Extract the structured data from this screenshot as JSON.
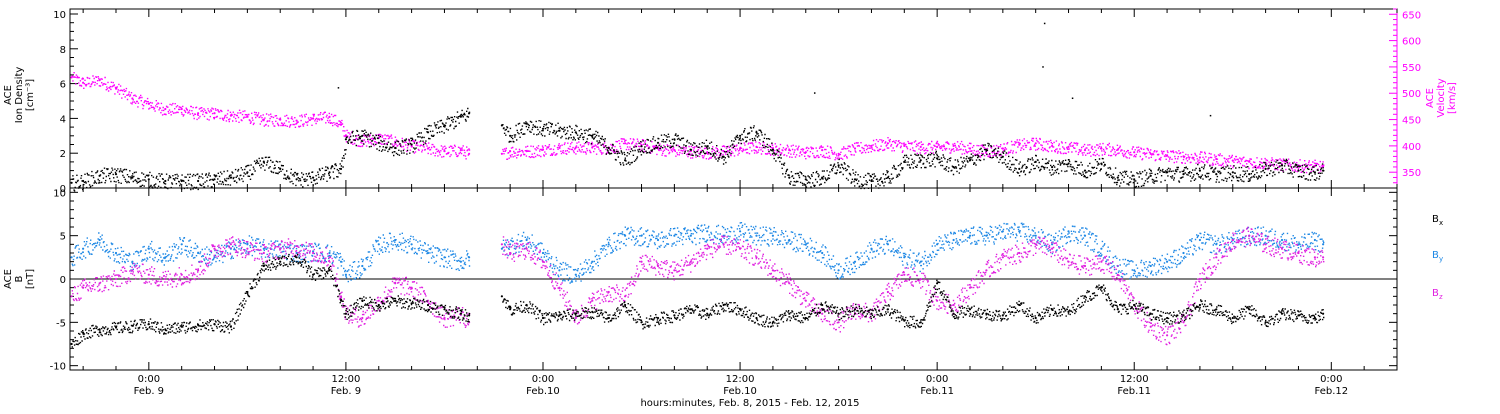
{
  "chart_data": [
    {
      "type": "scatter",
      "panel": "top",
      "ylabel": [
        "ACE",
        "Ion Density",
        "[cm⁻³]"
      ],
      "ylabel_right": [
        "ACE",
        "Velocity",
        "[km/s]"
      ],
      "ylim": [
        0,
        10
      ],
      "ylim_right": [
        320,
        660
      ],
      "yticks": [
        "0",
        "2",
        "4",
        "6",
        "8",
        "10"
      ],
      "yticks_right": [
        "350",
        "400",
        "450",
        "500",
        "550",
        "600",
        "650"
      ],
      "x_unit": "hours since Feb. 8, 2015 00:00",
      "xlim": [
        19.2,
        100
      ],
      "series": [
        {
          "color": "#000000",
          "axis": "left",
          "x": [
            19.3,
            20,
            21,
            22,
            23,
            24,
            25,
            26,
            27,
            28,
            29,
            30,
            31,
            32,
            33,
            34,
            35,
            35.7,
            36,
            37,
            38,
            39,
            40,
            41,
            42,
            43,
            43.5,
            45.5,
            46,
            47,
            48,
            49,
            50,
            51,
            52,
            53,
            54,
            55,
            56,
            57,
            58,
            59,
            60,
            61,
            62,
            63,
            64,
            65,
            66,
            67,
            68,
            69,
            70,
            71,
            72,
            73,
            74,
            75,
            76,
            77,
            78,
            79,
            80,
            81,
            82,
            83,
            84,
            85,
            86,
            87,
            88,
            89,
            90,
            91,
            92,
            93,
            94,
            95,
            95.5
          ],
          "y": [
            0.3,
            0.4,
            0.7,
            0.8,
            0.6,
            0.5,
            0.4,
            0.4,
            0.4,
            0.5,
            0.6,
            0.9,
            1.5,
            1.1,
            0.5,
            0.6,
            0.9,
            1.1,
            2.8,
            3.0,
            2.6,
            2.3,
            2.5,
            3.2,
            3.6,
            4.1,
            4.3,
            3.6,
            3.0,
            3.7,
            3.4,
            3.3,
            3.2,
            3.0,
            2.3,
            1.6,
            2.4,
            2.6,
            2.8,
            2.2,
            2.4,
            1.8,
            3.0,
            3.2,
            2.2,
            0.6,
            0.5,
            0.6,
            1.3,
            0.5,
            0.4,
            0.6,
            1.5,
            1.6,
            1.7,
            1.2,
            1.6,
            2.2,
            1.8,
            1.1,
            1.5,
            1.2,
            1.4,
            1.0,
            1.4,
            0.6,
            0.5,
            0.7,
            0.9,
            0.8,
            1.0,
            0.8,
            0.9,
            0.8,
            1.1,
            1.3,
            1.0,
            0.9,
            1.0
          ]
        },
        {
          "color": "#ff00ff",
          "axis": "right",
          "x": [
            19.3,
            20,
            21,
            22,
            23,
            24,
            25,
            26,
            27,
            28,
            29,
            30,
            31,
            32,
            33,
            34,
            35,
            35.7,
            36,
            37,
            38,
            39,
            40,
            41,
            42,
            43,
            43.5,
            45.5,
            46,
            47,
            48,
            49,
            50,
            51,
            52,
            53,
            54,
            55,
            56,
            57,
            58,
            59,
            60,
            61,
            62,
            63,
            64,
            65,
            66,
            67,
            68,
            69,
            70,
            71,
            72,
            73,
            74,
            75,
            76,
            77,
            78,
            79,
            80,
            81,
            82,
            83,
            84,
            85,
            86,
            87,
            88,
            89,
            90,
            91,
            92,
            93,
            94,
            95,
            95.5
          ],
          "y": [
            530,
            520,
            525,
            510,
            490,
            480,
            470,
            470,
            462,
            462,
            458,
            456,
            450,
            450,
            448,
            452,
            455,
            440,
            420,
            410,
            415,
            408,
            400,
            395,
            390,
            392,
            385,
            385,
            390,
            390,
            393,
            397,
            397,
            397,
            397,
            405,
            402,
            395,
            392,
            390,
            388,
            390,
            395,
            398,
            395,
            392,
            388,
            392,
            385,
            395,
            400,
            405,
            400,
            398,
            398,
            400,
            395,
            390,
            395,
            402,
            405,
            400,
            398,
            392,
            395,
            393,
            388,
            385,
            382,
            380,
            378,
            375,
            372,
            370,
            368,
            365,
            363,
            362,
            360
          ]
        }
      ]
    },
    {
      "type": "scatter",
      "panel": "bottom",
      "ylabel": [
        "ACE",
        "B",
        "[nT]"
      ],
      "ylim": [
        -10.5,
        10.5
      ],
      "yticks": [
        "-10",
        "-5",
        "0",
        "5",
        "10"
      ],
      "legend": [
        {
          "label": "B",
          "sub": "x",
          "color": "#000000"
        },
        {
          "label": "B",
          "sub": "y",
          "color": "#1e88e5"
        },
        {
          "label": "B",
          "sub": "z",
          "color": "#e020e0"
        }
      ],
      "zero_line": true,
      "xlim": [
        19.2,
        100
      ],
      "series": [
        {
          "name": "Bx",
          "color": "#000000",
          "x": [
            19.3,
            20,
            21,
            22,
            23,
            24,
            25,
            26,
            27,
            28,
            29,
            30,
            31,
            32,
            33,
            34,
            35,
            35.7,
            36,
            37,
            38,
            39,
            40,
            41,
            42,
            43,
            43.5,
            45.5,
            46,
            47,
            48,
            49,
            50,
            51,
            52,
            53,
            54,
            55,
            56,
            57,
            58,
            59,
            60,
            61,
            62,
            63,
            64,
            65,
            66,
            67,
            68,
            69,
            70,
            71,
            72,
            73,
            74,
            75,
            76,
            77,
            78,
            79,
            80,
            81,
            82,
            83,
            84,
            85,
            86,
            87,
            88,
            89,
            90,
            91,
            92,
            93,
            94,
            95,
            95.5
          ],
          "y": [
            -7.5,
            -6.2,
            -5.8,
            -5.6,
            -5.4,
            -5.2,
            -5.8,
            -5.5,
            -5.3,
            -5.2,
            -5.5,
            -1.5,
            1.5,
            2.0,
            2.5,
            0.5,
            1.0,
            -2.5,
            -4.0,
            -2.5,
            -3.0,
            -2.5,
            -2.8,
            -3.0,
            -3.5,
            -4.0,
            -4.2,
            -2.0,
            -3.5,
            -3.0,
            -4.5,
            -4.2,
            -4.0,
            -3.8,
            -4.5,
            -3.0,
            -5.0,
            -4.5,
            -4.2,
            -3.5,
            -4.0,
            -3.0,
            -3.5,
            -4.5,
            -5.0,
            -4.0,
            -4.5,
            -3.0,
            -4.0,
            -3.5,
            -4.0,
            -3.5,
            -4.8,
            -5.0,
            -0.5,
            -4.0,
            -3.5,
            -4.0,
            -4.2,
            -3.0,
            -4.5,
            -3.5,
            -3.8,
            -2.0,
            -1.0,
            -3.5,
            -3.0,
            -4.0,
            -4.5,
            -4.2,
            -3.0,
            -3.5,
            -4.5,
            -3.5,
            -5.0,
            -4.0,
            -4.2,
            -4.5,
            -4.0
          ]
        },
        {
          "name": "By",
          "color": "#1e88e5",
          "x": [
            19.3,
            20,
            21,
            22,
            23,
            24,
            25,
            26,
            27,
            28,
            29,
            30,
            31,
            32,
            33,
            34,
            35,
            35.7,
            36,
            37,
            38,
            39,
            40,
            41,
            42,
            43,
            43.5,
            45.5,
            46,
            47,
            48,
            49,
            50,
            51,
            52,
            53,
            54,
            55,
            56,
            57,
            58,
            59,
            60,
            61,
            62,
            63,
            64,
            65,
            66,
            67,
            68,
            69,
            70,
            71,
            72,
            73,
            74,
            75,
            76,
            77,
            78,
            79,
            80,
            81,
            82,
            83,
            84,
            85,
            86,
            87,
            88,
            89,
            90,
            91,
            92,
            93,
            94,
            95,
            95.5
          ],
          "y": [
            2.5,
            3.5,
            4.5,
            3.0,
            2.0,
            3.5,
            2.5,
            4.0,
            3.0,
            2.5,
            3.5,
            4.0,
            3.5,
            3.5,
            3.0,
            3.2,
            3.0,
            2.0,
            0.5,
            1.5,
            4.0,
            4.5,
            4.0,
            3.0,
            2.5,
            2.0,
            2.5,
            3.5,
            4.0,
            4.5,
            3.0,
            1.0,
            0.5,
            2.0,
            4.0,
            5.0,
            5.0,
            4.5,
            5.0,
            5.0,
            5.5,
            5.0,
            5.5,
            5.0,
            5.0,
            4.5,
            4.0,
            3.0,
            1.0,
            2.0,
            3.5,
            4.0,
            2.5,
            2.0,
            4.0,
            4.5,
            5.0,
            5.0,
            5.5,
            5.5,
            5.0,
            4.0,
            5.5,
            5.0,
            3.5,
            1.5,
            1.0,
            1.5,
            2.0,
            3.0,
            4.5,
            4.0,
            4.5,
            5.0,
            5.0,
            4.5,
            4.0,
            4.5,
            4.0
          ]
        },
        {
          "name": "Bz",
          "color": "#e020e0",
          "x": [
            19.3,
            20,
            21,
            22,
            23,
            24,
            25,
            26,
            27,
            28,
            29,
            30,
            31,
            32,
            33,
            34,
            35,
            35.7,
            36,
            37,
            38,
            39,
            40,
            41,
            42,
            43,
            43.5,
            45.5,
            46,
            47,
            48,
            49,
            50,
            51,
            52,
            53,
            54,
            55,
            56,
            57,
            58,
            59,
            60,
            61,
            62,
            63,
            64,
            65,
            66,
            67,
            68,
            69,
            70,
            71,
            72,
            73,
            74,
            75,
            76,
            77,
            78,
            79,
            80,
            81,
            82,
            83,
            84,
            85,
            86,
            87,
            88,
            89,
            90,
            91,
            92,
            93,
            94,
            95,
            95.5
          ],
          "y": [
            -2.0,
            -1.0,
            -0.5,
            0.0,
            1.0,
            0.5,
            0.0,
            0.5,
            1.0,
            3.5,
            4.0,
            3.5,
            3.0,
            3.5,
            3.8,
            3.0,
            2.5,
            -2.0,
            -4.0,
            -4.5,
            -2.5,
            -0.5,
            -1.0,
            -2.5,
            -4.5,
            -4.0,
            -5.0,
            4.0,
            3.0,
            3.5,
            2.0,
            -1.0,
            -4.5,
            -2.5,
            -1.5,
            -2.0,
            2.0,
            1.5,
            1.0,
            2.0,
            3.5,
            4.0,
            3.5,
            2.5,
            1.0,
            -0.5,
            -2.5,
            -4.0,
            -5.0,
            -3.5,
            -4.0,
            -1.5,
            0.5,
            0.0,
            -2.5,
            -3.0,
            -1.0,
            1.0,
            2.5,
            3.0,
            4.0,
            3.5,
            2.0,
            1.5,
            2.0,
            0.5,
            -3.0,
            -5.5,
            -6.5,
            -5.0,
            0.0,
            2.5,
            4.5,
            5.0,
            4.0,
            3.5,
            3.0,
            2.5,
            2.5
          ]
        }
      ]
    }
  ],
  "x_axis": {
    "ticks": [
      {
        "hour": 24,
        "time": "0:00",
        "date": "Feb. 9"
      },
      {
        "hour": 36,
        "time": "12:00",
        "date": "Feb. 9"
      },
      {
        "hour": 48,
        "time": "0:00",
        "date": "Feb.10"
      },
      {
        "hour": 60,
        "time": "12:00",
        "date": "Feb.10"
      },
      {
        "hour": 72,
        "time": "0:00",
        "date": "Feb.11"
      },
      {
        "hour": 84,
        "time": "12:00",
        "date": "Feb.11"
      },
      {
        "hour": 96,
        "time": "0:00",
        "date": "Feb.12"
      }
    ],
    "title": "hours:minutes, Feb.  8, 2015 - Feb. 12, 2015"
  }
}
